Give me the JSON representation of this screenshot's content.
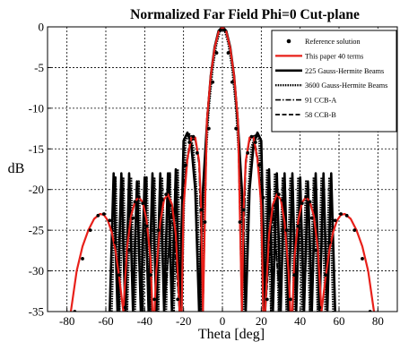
{
  "chart_data": {
    "type": "line",
    "title": "Normalized Far Field Phi=0 Cut-plane",
    "xlabel": "Theta [deg]",
    "ylabel": "dB",
    "xlim": [
      -90,
      90
    ],
    "ylim": [
      -35,
      0
    ],
    "xticks": [
      -80,
      -60,
      -40,
      -20,
      0,
      20,
      40,
      60,
      80
    ],
    "yticks": [
      0,
      -5,
      -10,
      -15,
      -20,
      -25,
      -30,
      -35
    ],
    "grid": true,
    "legend_position": "top-right",
    "series": [
      {
        "name": "Reference solution",
        "style": "markers",
        "color": "#000000",
        "x": [
          -76,
          -72,
          -68,
          -64,
          -61,
          -58,
          -55,
          -53,
          -50,
          -48,
          -46,
          -45,
          -43,
          -41,
          -39,
          -37,
          -35,
          -33,
          -31,
          -29,
          -27,
          -25,
          -23,
          -21,
          -19,
          -17,
          -15,
          -13,
          -11,
          -9,
          -7,
          -5,
          -3,
          -1,
          1,
          3,
          5,
          7,
          9,
          11,
          13,
          15,
          17,
          19,
          21,
          23,
          25,
          27,
          29,
          31,
          33,
          35,
          37,
          39,
          41,
          43,
          45,
          46,
          48,
          50,
          53,
          55,
          58,
          61,
          64,
          68,
          72,
          76
        ],
        "y": [
          -35,
          -28.5,
          -25,
          -23.2,
          -23.0,
          -23.8,
          -26.5,
          -30.5,
          -34.5,
          -27.5,
          -23.5,
          -21.5,
          -20.9,
          -21.7,
          -24.5,
          -30.5,
          -33.5,
          -25,
          -21.3,
          -20.6,
          -22,
          -26.5,
          -33.5,
          -21,
          -17,
          -14.2,
          -13.5,
          -15.5,
          -22.5,
          -24,
          -12.5,
          -6.8,
          -3.2,
          -0.4,
          -0.4,
          -3.2,
          -6.8,
          -12.5,
          -24,
          -22.5,
          -15.5,
          -13.5,
          -14.2,
          -17,
          -21,
          -33.5,
          -26.5,
          -22,
          -20.6,
          -21.3,
          -25,
          -33.5,
          -30.5,
          -24.5,
          -21.7,
          -20.9,
          -21.5,
          -23.5,
          -27.5,
          -34.5,
          -30.5,
          -26.5,
          -23.8,
          -23.0,
          -23.2,
          -25,
          -28.5,
          -35
        ]
      },
      {
        "name": "This paper 40 terms",
        "style": "solid",
        "color": "#e8201a",
        "x": [
          -78,
          -75,
          -72,
          -69,
          -66,
          -63,
          -61,
          -59,
          -57,
          -55,
          -53,
          -51,
          -49,
          -47,
          -45,
          -43,
          -41,
          -39,
          -37,
          -36,
          -35,
          -34,
          -32,
          -30,
          -28,
          -26,
          -24,
          -22,
          -21,
          -20,
          -18,
          -16,
          -14,
          -12,
          -11,
          -10,
          -8,
          -6,
          -4,
          -2,
          0,
          2,
          4,
          6,
          8,
          10,
          11,
          12,
          14,
          16,
          18,
          20,
          21,
          22,
          24,
          26,
          28,
          30,
          32,
          34,
          35,
          36,
          37,
          39,
          41,
          43,
          45,
          47,
          49,
          51,
          53,
          55,
          57,
          59,
          61,
          63,
          66,
          69,
          72,
          75,
          78
        ],
        "y": [
          -35,
          -30,
          -27,
          -25,
          -23.6,
          -23.0,
          -23.1,
          -23.8,
          -25.2,
          -27.5,
          -31,
          -35,
          -27,
          -23.2,
          -21.5,
          -20.9,
          -21.6,
          -23.8,
          -28.5,
          -35,
          -35,
          -30,
          -24,
          -21.2,
          -20.6,
          -21.8,
          -25.5,
          -35,
          -35,
          -22,
          -16.2,
          -13.6,
          -13.6,
          -16.5,
          -22,
          -35,
          -11.5,
          -6,
          -2.6,
          -0.6,
          0,
          -0.6,
          -2.6,
          -6,
          -11.5,
          -35,
          -22,
          -16.5,
          -13.6,
          -13.6,
          -16.2,
          -22,
          -35,
          -35,
          -25.5,
          -21.8,
          -20.6,
          -21.2,
          -24,
          -30,
          -35,
          -35,
          -28.5,
          -23.8,
          -21.6,
          -20.9,
          -21.5,
          -23.2,
          -27,
          -35,
          -31,
          -27.5,
          -25.2,
          -23.8,
          -23.1,
          -23.0,
          -23.6,
          -25,
          -27,
          -30,
          -35
        ]
      },
      {
        "name": "225 Gauss-Hermite Beams",
        "style": "thick-solid",
        "color": "#000000",
        "x": [
          -58,
          -56,
          -54,
          -52,
          -50,
          -48,
          -46,
          -44,
          -42,
          -40,
          -38,
          -36,
          -34,
          -32,
          -30,
          -28,
          -26,
          -24,
          -22,
          -20,
          -18,
          -16,
          -14,
          -12,
          -10,
          -8,
          -6,
          -4,
          -2,
          0,
          2,
          4,
          6,
          8,
          10,
          12,
          14,
          16,
          18,
          20,
          22,
          24,
          26,
          28,
          30,
          32,
          34,
          36,
          38,
          40,
          42,
          44,
          46,
          48,
          50,
          52,
          54,
          56,
          58
        ],
        "y": [
          -35,
          -18,
          -35,
          -18,
          -35,
          -18,
          -35,
          -19,
          -35,
          -18.5,
          -35,
          -18,
          -35,
          -18,
          -35,
          -18,
          -35,
          -17.5,
          -35,
          -14,
          -13,
          -14.5,
          -20,
          -35,
          -20,
          -12,
          -6,
          -2.5,
          -0.5,
          0,
          -0.5,
          -2.5,
          -6,
          -12,
          -20,
          -35,
          -20,
          -14.5,
          -13,
          -14,
          -35,
          -17.5,
          -35,
          -18,
          -35,
          -18,
          -35,
          -18,
          -35,
          -18.5,
          -35,
          -19,
          -35,
          -18,
          -35,
          -18,
          -35,
          -18,
          -35
        ]
      },
      {
        "name": "3600 Gauss-Hermite Beams",
        "style": "dotted",
        "color": "#000000",
        "x": [
          -57,
          -55,
          -53,
          -51,
          -49,
          -47,
          -45,
          -43,
          -41,
          -39,
          -37,
          -35,
          -33,
          -31,
          -29,
          -27,
          -25,
          -23,
          -21,
          -19,
          -17,
          -15,
          -13,
          -11,
          -9,
          -7,
          -5,
          -3,
          -1,
          1,
          3,
          5,
          7,
          9,
          11,
          13,
          15,
          17,
          19,
          21,
          23,
          25,
          27,
          29,
          31,
          33,
          35,
          37,
          39,
          41,
          43,
          45,
          47,
          49,
          51,
          53,
          55,
          57
        ],
        "y": [
          -35,
          -18.5,
          -35,
          -18.5,
          -35,
          -18.5,
          -35,
          -19,
          -35,
          -18.5,
          -35,
          -18.5,
          -35,
          -18.5,
          -35,
          -18,
          -35,
          -17.5,
          -35,
          -14,
          -13.2,
          -14.8,
          -21,
          -35,
          -18,
          -10,
          -5,
          -2,
          -0.3,
          -0.3,
          -2,
          -5,
          -10,
          -18,
          -35,
          -21,
          -14.8,
          -13.2,
          -14,
          -35,
          -17.5,
          -35,
          -18,
          -35,
          -18.5,
          -35,
          -18.5,
          -35,
          -18.5,
          -35,
          -19,
          -35,
          -18.5,
          -35,
          -18.5,
          -35,
          -18.5,
          -35
        ]
      },
      {
        "name": "91 CCB-A",
        "style": "dash-dot",
        "color": "#000000",
        "x": [
          -30,
          -26,
          -22,
          -20,
          -18,
          -16,
          -14,
          -12,
          -10,
          -8,
          -6,
          -4,
          -2,
          0,
          2,
          4,
          6,
          8,
          10,
          12,
          14,
          16,
          18,
          20,
          22,
          26,
          30
        ],
        "y": [
          -35,
          -22,
          -35,
          -20,
          -15.8,
          -13.4,
          -13.8,
          -17,
          -35,
          -11,
          -5.8,
          -2.5,
          -0.6,
          0,
          -0.6,
          -2.5,
          -5.8,
          -11,
          -35,
          -17,
          -13.8,
          -13.4,
          -15.8,
          -20,
          -35,
          -22,
          -35
        ]
      },
      {
        "name": "58 CCB-B",
        "style": "dashed",
        "color": "#000000",
        "x": [
          -30,
          -26,
          -22,
          -20,
          -18,
          -16,
          -14,
          -12,
          -10,
          -8,
          -6,
          -4,
          -2,
          0,
          2,
          4,
          6,
          8,
          10,
          12,
          14,
          16,
          18,
          20,
          22,
          26,
          30
        ],
        "y": [
          -35,
          -22.5,
          -35,
          -21,
          -16.4,
          -13.8,
          -13.9,
          -16.5,
          -35,
          -11.8,
          -6.2,
          -2.7,
          -0.7,
          0,
          -0.7,
          -2.7,
          -6.2,
          -11.8,
          -35,
          -16.5,
          -13.9,
          -13.8,
          -16.4,
          -21,
          -35,
          -22.5,
          -35
        ]
      }
    ]
  }
}
